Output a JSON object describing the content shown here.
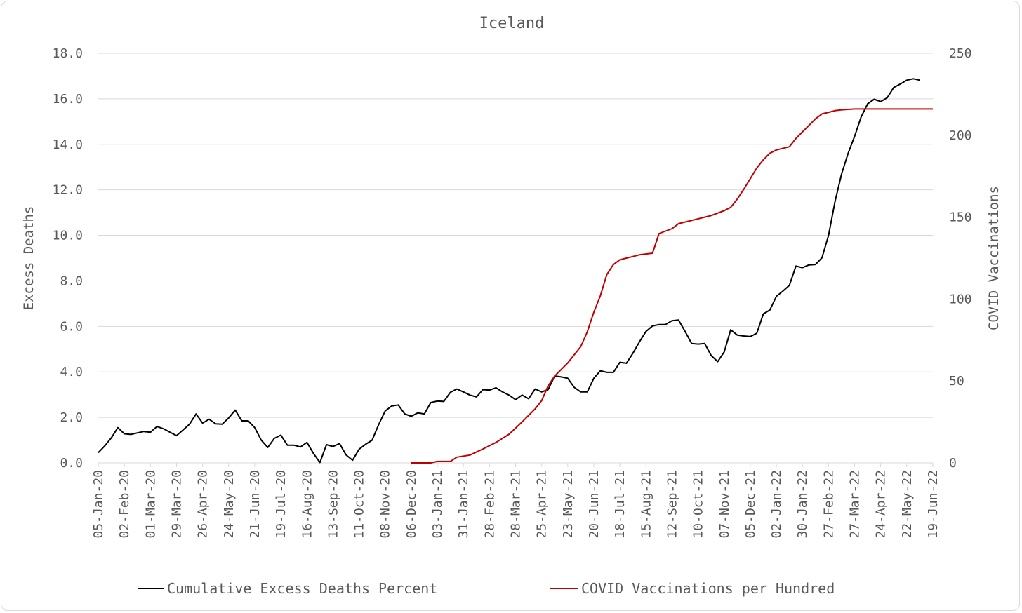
{
  "chart_data": {
    "type": "line",
    "title": "Iceland",
    "y_left": {
      "label": "Excess Deaths",
      "min": 0,
      "max": 18,
      "step": 2,
      "tick_labels": [
        "0.0",
        "2.0",
        "4.0",
        "6.0",
        "8.0",
        "10.0",
        "12.0",
        "14.0",
        "16.0",
        "18.0"
      ]
    },
    "y_right": {
      "label": "COVID Vaccinations",
      "min": 0,
      "max": 250,
      "step": 50,
      "tick_labels": [
        "0",
        "50",
        "100",
        "150",
        "200",
        "250"
      ]
    },
    "x_axis": {
      "start_date": "2020-01-05",
      "end_date": "2022-06-19",
      "tick_labels": [
        "05-Jan-20",
        "02-Feb-20",
        "01-Mar-20",
        "29-Mar-20",
        "26-Apr-20",
        "24-May-20",
        "21-Jun-20",
        "19-Jul-20",
        "16-Aug-20",
        "13-Sep-20",
        "11-Oct-20",
        "08-Nov-20",
        "06-Dec-20",
        "03-Jan-21",
        "31-Jan-21",
        "28-Feb-21",
        "28-Mar-21",
        "25-Apr-21",
        "23-May-21",
        "20-Jun-21",
        "18-Jul-21",
        "15-Aug-21",
        "12-Sep-21",
        "10-Oct-21",
        "07-Nov-21",
        "05-Dec-21",
        "02-Jan-22",
        "30-Jan-22",
        "27-Feb-22",
        "27-Mar-22",
        "24-Apr-22",
        "22-May-22",
        "19-Jun-22"
      ]
    },
    "legend_position": "bottom",
    "grid": true,
    "series": [
      {
        "name": "Cumulative Excess Deaths Percent",
        "axis": "left",
        "color": "#000000",
        "x_start": "2020-01-05",
        "x_interval": "weekly",
        "values": [
          0.45,
          0.75,
          1.1,
          1.55,
          1.28,
          1.25,
          1.32,
          1.38,
          1.35,
          1.6,
          1.5,
          1.35,
          1.2,
          1.45,
          1.7,
          2.15,
          1.75,
          1.92,
          1.72,
          1.7,
          1.98,
          2.32,
          1.85,
          1.85,
          1.55,
          1.0,
          0.68,
          1.08,
          1.22,
          0.78,
          0.78,
          0.7,
          0.9,
          0.42,
          0.02,
          0.8,
          0.72,
          0.85,
          0.35,
          0.12,
          0.6,
          0.82,
          1.0,
          1.68,
          2.28,
          2.5,
          2.55,
          2.15,
          2.05,
          2.2,
          2.15,
          2.65,
          2.72,
          2.7,
          3.1,
          3.25,
          3.12,
          2.98,
          2.9,
          3.22,
          3.2,
          3.3,
          3.12,
          2.98,
          2.78,
          2.98,
          2.82,
          3.25,
          3.12,
          3.22,
          3.82,
          3.78,
          3.72,
          3.32,
          3.12,
          3.12,
          3.72,
          4.05,
          3.98,
          3.98,
          4.42,
          4.38,
          4.82,
          5.32,
          5.78,
          6.02,
          6.08,
          6.08,
          6.25,
          6.28,
          5.78,
          5.25,
          5.22,
          5.25,
          4.72,
          4.45,
          4.88,
          5.85,
          5.62,
          5.58,
          5.55,
          5.7,
          6.55,
          6.72,
          7.32,
          7.55,
          7.8,
          8.65,
          8.58,
          8.7,
          8.72,
          9.02,
          10.0,
          11.5,
          12.7,
          13.6,
          14.35,
          15.2,
          15.78,
          15.98,
          15.88,
          16.05,
          16.5,
          16.65,
          16.82,
          16.88,
          16.82
        ]
      },
      {
        "name": "COVID Vaccinations per Hundred",
        "axis": "right",
        "color": "#c00000",
        "points": [
          [
            "2020-12-06",
            0
          ],
          [
            "2020-12-27",
            0
          ],
          [
            "2021-01-03",
            0.9
          ],
          [
            "2021-01-17",
            0.9
          ],
          [
            "2021-01-24",
            3.5
          ],
          [
            "2021-02-07",
            4.8
          ],
          [
            "2021-02-21",
            8.5
          ],
          [
            "2021-03-07",
            12.5
          ],
          [
            "2021-03-21",
            17.5
          ],
          [
            "2021-04-04",
            25
          ],
          [
            "2021-04-18",
            33
          ],
          [
            "2021-04-25",
            38
          ],
          [
            "2021-05-02",
            47
          ],
          [
            "2021-05-09",
            53
          ],
          [
            "2021-05-16",
            57
          ],
          [
            "2021-05-23",
            61
          ],
          [
            "2021-06-06",
            71
          ],
          [
            "2021-06-13",
            80
          ],
          [
            "2021-06-20",
            92
          ],
          [
            "2021-06-27",
            102
          ],
          [
            "2021-07-04",
            115
          ],
          [
            "2021-07-11",
            121
          ],
          [
            "2021-07-18",
            124
          ],
          [
            "2021-08-01",
            126
          ],
          [
            "2021-08-08",
            127
          ],
          [
            "2021-08-22",
            128
          ],
          [
            "2021-08-29",
            140
          ],
          [
            "2021-09-12",
            143
          ],
          [
            "2021-09-19",
            146
          ],
          [
            "2021-10-03",
            148
          ],
          [
            "2021-10-17",
            150
          ],
          [
            "2021-10-24",
            151
          ],
          [
            "2021-11-07",
            154
          ],
          [
            "2021-11-14",
            156
          ],
          [
            "2021-11-21",
            161
          ],
          [
            "2021-11-28",
            167
          ],
          [
            "2021-12-12",
            180
          ],
          [
            "2021-12-19",
            185
          ],
          [
            "2021-12-26",
            189
          ],
          [
            "2022-01-02",
            191
          ],
          [
            "2022-01-16",
            193
          ],
          [
            "2022-01-23",
            198
          ],
          [
            "2022-02-06",
            206
          ],
          [
            "2022-02-13",
            210
          ],
          [
            "2022-02-20",
            213
          ],
          [
            "2022-02-27",
            214
          ],
          [
            "2022-03-06",
            215
          ],
          [
            "2022-03-13",
            215.5
          ],
          [
            "2022-03-27",
            216
          ],
          [
            "2022-06-19",
            216
          ]
        ]
      }
    ]
  }
}
